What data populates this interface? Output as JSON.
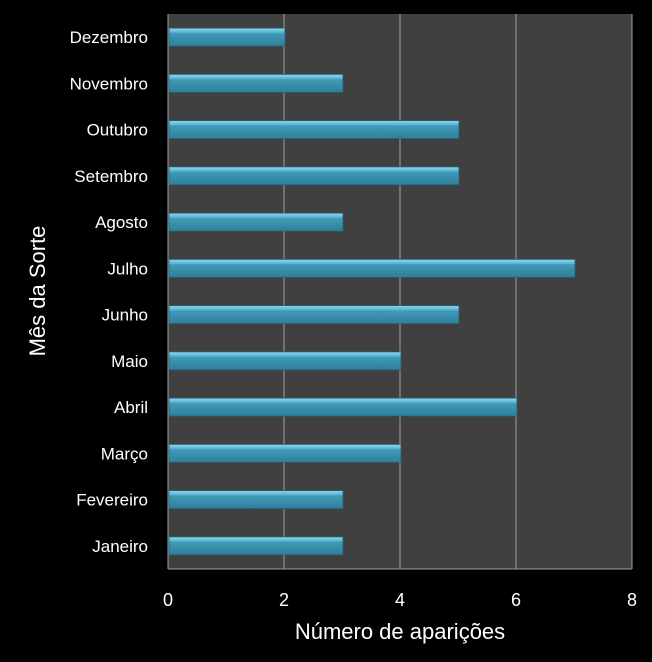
{
  "chart_data": {
    "type": "bar",
    "orientation": "horizontal",
    "categories": [
      "Janeiro",
      "Fevereiro",
      "Março",
      "Abril",
      "Maio",
      "Junho",
      "Julho",
      "Agosto",
      "Setembro",
      "Outubro",
      "Novembro",
      "Dezembro"
    ],
    "values": [
      3,
      3,
      4,
      6,
      4,
      5,
      7,
      3,
      5,
      5,
      3,
      2
    ],
    "title": "",
    "xlabel": "Número de aparições",
    "ylabel": "Mês da Sorte",
    "xlim": [
      0,
      8
    ],
    "xticks": [
      "0",
      "2",
      "4",
      "6",
      "8"
    ],
    "grid": true,
    "legend": "none",
    "colors": {
      "bar": "#3f9ab8",
      "bar_highlight": "#7fd0ea",
      "plot_bg": "#404040",
      "grid": "#a0a0a0",
      "page_bg": "#000000"
    }
  }
}
